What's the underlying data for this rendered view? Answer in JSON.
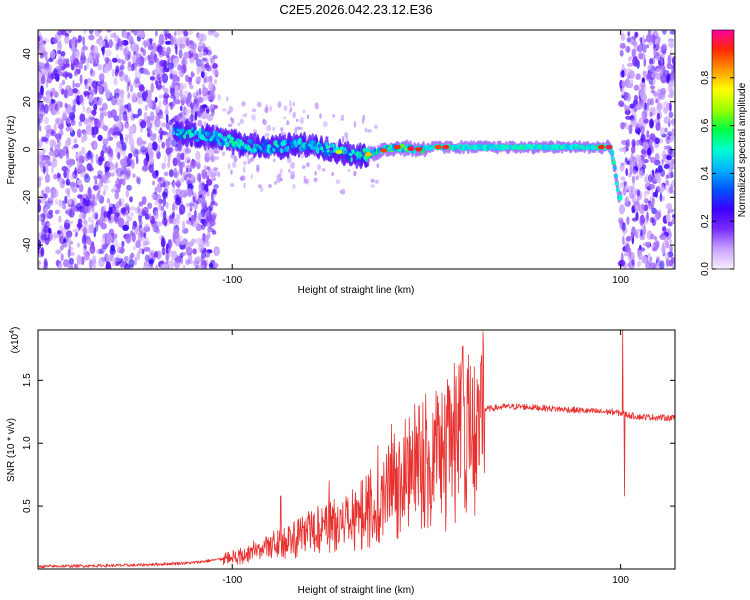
{
  "figure_title": "C2E5.2026.042.23.12.E36",
  "chart_data": [
    {
      "type": "heatmap",
      "title": "C2E5.2026.042.23.12.E36",
      "xlabel": "Height of straight line (km)",
      "ylabel": "Frequency (Hz)",
      "xlim": [
        -200,
        128
      ],
      "ylim": [
        -50,
        50
      ],
      "x_ticks": [
        -100,
        100
      ],
      "x_tick_labels": [
        "-100",
        "100"
      ],
      "y_ticks": [
        -40,
        -20,
        0,
        20,
        40
      ],
      "y_tick_labels": [
        "-40",
        "-20",
        "0",
        "20",
        "40"
      ],
      "colorbar": {
        "label": "Normalized spectral amplitude",
        "range": [
          0,
          1
        ],
        "ticks": [
          0.0,
          0.2,
          0.4,
          0.6,
          0.8
        ],
        "tick_labels": [
          "0.0",
          "0.2",
          "0.4",
          "0.6",
          "0.8"
        ],
        "colors": [
          "#f8f0ff",
          "#c9a3ff",
          "#7a2cff",
          "#3a00ff",
          "#0055ff",
          "#00b4ff",
          "#00ffd0",
          "#00ff40",
          "#9dff00",
          "#ffff00",
          "#ff9900",
          "#ff2a00",
          "#ff00a0"
        ]
      },
      "ridge": {
        "x": [
          -128,
          -110,
          -95,
          -80,
          -65,
          -50,
          -35,
          -25,
          -15,
          -5,
          5,
          20,
          40,
          60,
          80,
          95,
          97,
          99,
          100
        ],
        "y": [
          7,
          5,
          2,
          1,
          2,
          0,
          -3,
          -1,
          1,
          0,
          1,
          1,
          1,
          1,
          1,
          1,
          -8,
          -20,
          -20
        ]
      },
      "noise_regions_x": [
        [
          -200,
          -108
        ],
        [
          100,
          128
        ]
      ]
    },
    {
      "type": "line",
      "xlabel": "Height of straight line (km)",
      "ylabel": "SNR (10 * v/v)",
      "y_multiplier_label": "(x10",
      "y_multiplier_exp": "4",
      "xlim": [
        -200,
        128
      ],
      "ylim": [
        0,
        1.9
      ],
      "x_ticks": [
        -100,
        100
      ],
      "x_tick_labels": [
        "-100",
        "100"
      ],
      "y_ticks": [
        0.5,
        1.0,
        1.5
      ],
      "y_tick_labels": [
        "0.5",
        "1.0",
        "1.5"
      ],
      "line_color": "#e8302e",
      "envelope": {
        "x": [
          -200,
          -150,
          -120,
          -105,
          -95,
          -85,
          -75,
          -65,
          -55,
          -45,
          -35,
          -25,
          -20,
          -15,
          -10,
          -5,
          0,
          5,
          10,
          15,
          20,
          25,
          30,
          35,
          40,
          50,
          60,
          70,
          80,
          90,
          95,
          100,
          105,
          110,
          128
        ],
        "y": [
          0.02,
          0.03,
          0.05,
          0.08,
          0.12,
          0.17,
          0.22,
          0.28,
          0.34,
          0.4,
          0.46,
          0.58,
          0.66,
          0.75,
          0.85,
          0.95,
          1.02,
          1.06,
          1.1,
          1.14,
          1.2,
          1.24,
          1.27,
          1.28,
          1.29,
          1.29,
          1.28,
          1.27,
          1.26,
          1.25,
          1.25,
          1.24,
          1.22,
          1.21,
          1.2
        ]
      },
      "spikes": [
        {
          "x": -75,
          "y": 0.58
        },
        {
          "x": -50,
          "y": 0.7
        },
        {
          "x": -25,
          "y": 0.98
        },
        {
          "x": -18,
          "y": 1.15
        },
        {
          "x": -10,
          "y": 1.05
        },
        {
          "x": 8,
          "y": 1.4
        },
        {
          "x": 10,
          "y": 0.3
        },
        {
          "x": 12,
          "y": 1.42
        },
        {
          "x": 101,
          "y": 1.92
        },
        {
          "x": 102,
          "y": 0.58
        }
      ]
    }
  ]
}
